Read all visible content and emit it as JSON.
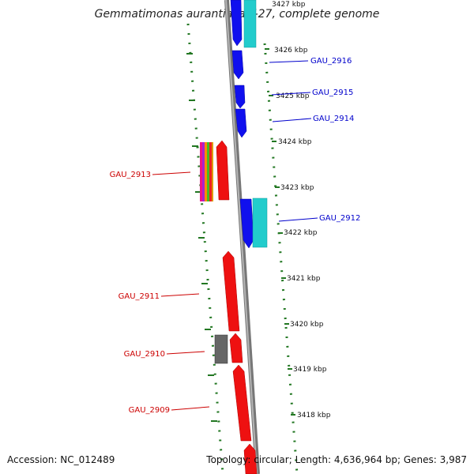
{
  "title": "Gemmatimonas aurantiaca T-27, complete genome",
  "footer": {
    "accession_label": "Accession:",
    "accession": "NC_012489",
    "topology_label": "Topology:",
    "topology": "circular",
    "length_label": "Length:",
    "length": "4,636,964 bp",
    "genes_label": "Genes:",
    "genes": "3,987"
  },
  "colors": {
    "backbone": "#8c8c8c",
    "tick": "#227722",
    "forward_label": "#0000cc",
    "reverse_label": "#cc0000",
    "blue_gene": "#1010ee",
    "cyan_gene": "#22cccc",
    "red_gene": "#ee1111",
    "gray_gene": "#666666"
  },
  "scale_labels": [
    "3427 kbp",
    "3426 kbp",
    "3425 kbp",
    "3424 kbp",
    "3423 kbp",
    "3422 kbp",
    "3421 kbp",
    "3420 kbp",
    "3419 kbp",
    "3418 kbp"
  ],
  "genes": [
    {
      "label": "GAU_2916",
      "strand": "forward"
    },
    {
      "label": "GAU_2915",
      "strand": "forward"
    },
    {
      "label": "GAU_2914",
      "strand": "forward"
    },
    {
      "label": "GAU_2913",
      "strand": "reverse"
    },
    {
      "label": "GAU_2912",
      "strand": "forward"
    },
    {
      "label": "GAU_2911",
      "strand": "reverse"
    },
    {
      "label": "GAU_2910",
      "strand": "reverse"
    },
    {
      "label": "GAU_2909",
      "strand": "reverse"
    }
  ]
}
